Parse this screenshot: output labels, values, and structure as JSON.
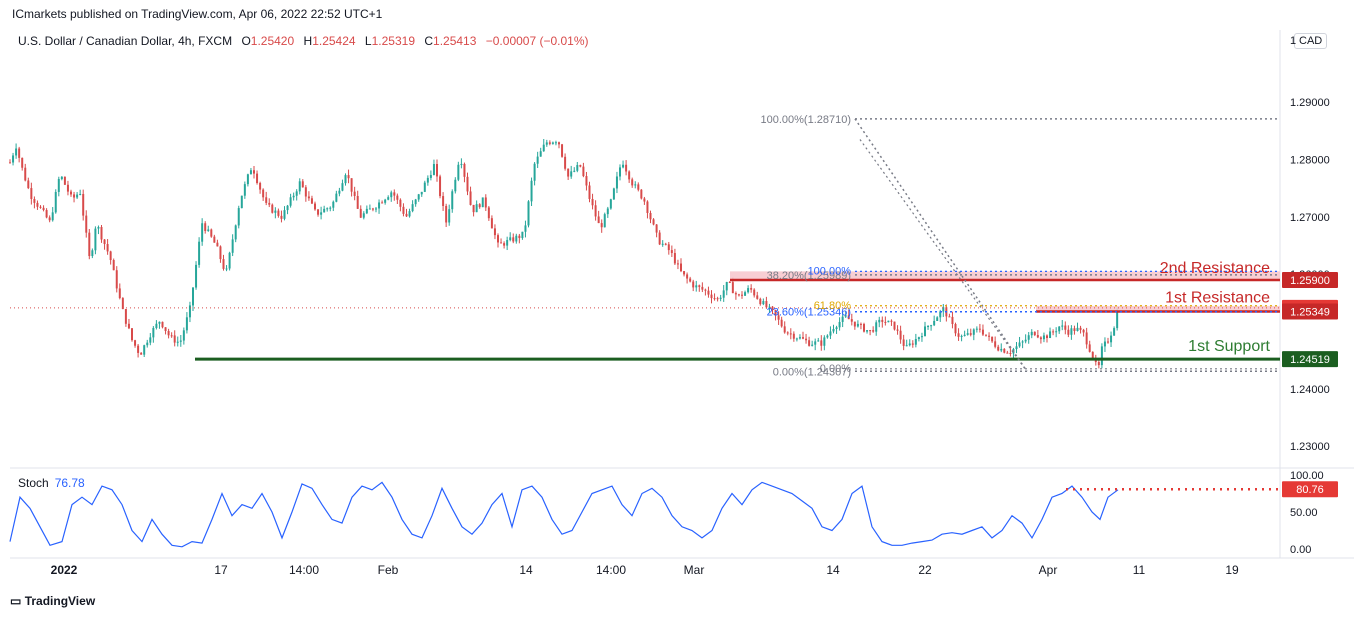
{
  "publisher": "ICmarkets published on TradingView.com, Apr 06, 2022 22:52 UTC+1",
  "legend": {
    "symbol": "U.S. Dollar / Canadian Dollar, 4h, FXCM",
    "open_label": "O",
    "open": "1.25420",
    "high_label": "H",
    "high": "1.25424",
    "low_label": "L",
    "low": "1.25319",
    "close_label": "C",
    "close": "1.25413",
    "change": "−0.00007 (−0.01%)"
  },
  "currency_button": "CAD",
  "stoch_legend": {
    "name": "Stoch",
    "value": "76.78"
  },
  "brand": "TradingView",
  "chart_data": {
    "type": "candlestick",
    "price_axis": {
      "ticks": [
        "1.29000",
        "1.28000",
        "1.27000",
        "1.26000",
        "1.24000",
        "1.23000"
      ],
      "tick_values": [
        1.29,
        1.28,
        1.27,
        1.26,
        1.24,
        1.23
      ],
      "top_tick": "1",
      "ylim": [
        1.2262,
        1.3026
      ]
    },
    "time_axis": {
      "ticks": [
        "2022",
        "17",
        "14:00",
        "Feb",
        "14",
        "14:00",
        "Mar",
        "14",
        "22",
        "Apr",
        "11",
        "19"
      ]
    },
    "price_anchors": [
      [
        0,
        1.2795
      ],
      [
        6,
        1.2825
      ],
      [
        12,
        1.2785
      ],
      [
        20,
        1.274
      ],
      [
        30,
        1.2715
      ],
      [
        40,
        1.269
      ],
      [
        50,
        1.2775
      ],
      [
        62,
        1.273
      ],
      [
        70,
        1.2745
      ],
      [
        80,
        1.262
      ],
      [
        86,
        1.269
      ],
      [
        100,
        1.263
      ],
      [
        112,
        1.254
      ],
      [
        122,
        1.2485
      ],
      [
        130,
        1.246
      ],
      [
        140,
        1.2495
      ],
      [
        150,
        1.252
      ],
      [
        160,
        1.249
      ],
      [
        170,
        1.248
      ],
      [
        180,
        1.254
      ],
      [
        192,
        1.269
      ],
      [
        206,
        1.265
      ],
      [
        216,
        1.26
      ],
      [
        230,
        1.273
      ],
      [
        242,
        1.279
      ],
      [
        256,
        1.272
      ],
      [
        272,
        1.27
      ],
      [
        290,
        1.276
      ],
      [
        306,
        1.2705
      ],
      [
        322,
        1.272
      ],
      [
        336,
        1.278
      ],
      [
        350,
        1.27
      ],
      [
        366,
        1.272
      ],
      [
        382,
        1.2745
      ],
      [
        396,
        1.27
      ],
      [
        410,
        1.274
      ],
      [
        424,
        1.279
      ],
      [
        436,
        1.269
      ],
      [
        450,
        1.281
      ],
      [
        462,
        1.271
      ],
      [
        474,
        1.273
      ],
      [
        488,
        1.265
      ],
      [
        502,
        1.266
      ],
      [
        514,
        1.267
      ],
      [
        524,
        1.279
      ],
      [
        536,
        1.283
      ],
      [
        548,
        1.2835
      ],
      [
        558,
        1.277
      ],
      [
        570,
        1.279
      ],
      [
        580,
        1.273
      ],
      [
        590,
        1.268
      ],
      [
        600,
        1.272
      ],
      [
        612,
        1.28
      ],
      [
        622,
        1.276
      ],
      [
        634,
        1.273
      ],
      [
        648,
        1.266
      ],
      [
        660,
        1.264
      ],
      [
        672,
        1.26
      ],
      [
        684,
        1.258
      ],
      [
        696,
        1.257
      ],
      [
        708,
        1.2555
      ],
      [
        718,
        1.2585
      ],
      [
        728,
        1.256
      ],
      [
        740,
        1.2575
      ],
      [
        752,
        1.255
      ],
      [
        764,
        1.253
      ],
      [
        776,
        1.25
      ],
      [
        788,
        1.249
      ],
      [
        800,
        1.248
      ],
      [
        812,
        1.248
      ],
      [
        824,
        1.251
      ],
      [
        836,
        1.2525
      ],
      [
        848,
        1.251
      ],
      [
        860,
        1.25
      ],
      [
        872,
        1.252
      ],
      [
        884,
        1.251
      ],
      [
        896,
        1.247
      ],
      [
        908,
        1.249
      ],
      [
        918,
        1.251
      ],
      [
        926,
        1.2525
      ],
      [
        934,
        1.254
      ],
      [
        942,
        1.251
      ],
      [
        950,
        1.249
      ],
      [
        960,
        1.2495
      ],
      [
        970,
        1.2505
      ],
      [
        980,
        1.2485
      ],
      [
        990,
        1.247
      ],
      [
        1000,
        1.2465
      ],
      [
        1012,
        1.248
      ],
      [
        1024,
        1.25
      ],
      [
        1032,
        1.249
      ],
      [
        1040,
        1.2495
      ],
      [
        1050,
        1.251
      ],
      [
        1058,
        1.25
      ],
      [
        1066,
        1.2505
      ],
      [
        1074,
        1.2495
      ],
      [
        1082,
        1.246
      ],
      [
        1088,
        1.243
      ],
      [
        1092,
        1.247
      ],
      [
        1098,
        1.2485
      ],
      [
        1104,
        1.251
      ],
      [
        1108,
        1.2538
      ]
    ],
    "levels": [
      {
        "name": "2nd Resistance",
        "label": "1.25900",
        "price": 1.259
      },
      {
        "name": "1st Resistance",
        "label": "1.25349",
        "price": 1.25349
      },
      {
        "name": "1st Support",
        "label": "1.24519",
        "price": 1.24519
      }
    ],
    "last_price": {
      "label": "1.25413",
      "price": 1.25413
    },
    "fibonacci_1": [
      {
        "label": "100.00%(1.28710)",
        "price": 1.2871
      },
      {
        "label": "38.20%(1.25989)",
        "price": 1.25989
      },
      {
        "label": "23.60%(1.25346)",
        "price": 1.25346
      },
      {
        "label": "0.00%(1.24307)",
        "price": 1.24307
      }
    ],
    "fibonacci_2": [
      {
        "label": "100.00%",
        "price": 1.2605
      },
      {
        "label": "61.80%",
        "price": 1.2545
      },
      {
        "label": "0.00%",
        "price": 1.2435
      }
    ],
    "stochastic": {
      "value": "76.78",
      "marker_label": "80.76",
      "marker_value": 80.76,
      "ticks": [
        "100.00",
        "50.00",
        "0.00"
      ],
      "tick_values": [
        100,
        50,
        0
      ],
      "anchors": [
        [
          0,
          10
        ],
        [
          10,
          70
        ],
        [
          20,
          55
        ],
        [
          30,
          30
        ],
        [
          40,
          5
        ],
        [
          52,
          10
        ],
        [
          62,
          60
        ],
        [
          72,
          70
        ],
        [
          82,
          60
        ],
        [
          92,
          85
        ],
        [
          102,
          80
        ],
        [
          112,
          60
        ],
        [
          122,
          25
        ],
        [
          132,
          10
        ],
        [
          142,
          40
        ],
        [
          152,
          20
        ],
        [
          162,
          5
        ],
        [
          172,
          3
        ],
        [
          182,
          10
        ],
        [
          192,
          8
        ],
        [
          202,
          40
        ],
        [
          212,
          75
        ],
        [
          222,
          45
        ],
        [
          232,
          60
        ],
        [
          242,
          55
        ],
        [
          252,
          75
        ],
        [
          262,
          50
        ],
        [
          272,
          15
        ],
        [
          282,
          50
        ],
        [
          292,
          88
        ],
        [
          302,
          82
        ],
        [
          312,
          60
        ],
        [
          322,
          40
        ],
        [
          332,
          35
        ],
        [
          342,
          70
        ],
        [
          352,
          85
        ],
        [
          362,
          80
        ],
        [
          372,
          90
        ],
        [
          382,
          70
        ],
        [
          392,
          40
        ],
        [
          402,
          20
        ],
        [
          412,
          15
        ],
        [
          422,
          45
        ],
        [
          432,
          82
        ],
        [
          442,
          55
        ],
        [
          452,
          30
        ],
        [
          462,
          20
        ],
        [
          472,
          35
        ],
        [
          482,
          60
        ],
        [
          492,
          75
        ],
        [
          502,
          30
        ],
        [
          512,
          80
        ],
        [
          522,
          85
        ],
        [
          532,
          70
        ],
        [
          542,
          40
        ],
        [
          552,
          20
        ],
        [
          562,
          25
        ],
        [
          572,
          50
        ],
        [
          582,
          75
        ],
        [
          592,
          80
        ],
        [
          602,
          85
        ],
        [
          612,
          60
        ],
        [
          622,
          45
        ],
        [
          632,
          75
        ],
        [
          642,
          82
        ],
        [
          652,
          70
        ],
        [
          662,
          45
        ],
        [
          672,
          30
        ],
        [
          682,
          25
        ],
        [
          692,
          15
        ],
        [
          702,
          25
        ],
        [
          712,
          55
        ],
        [
          722,
          75
        ],
        [
          732,
          60
        ],
        [
          742,
          80
        ],
        [
          752,
          90
        ],
        [
          762,
          85
        ],
        [
          772,
          80
        ],
        [
          782,
          75
        ],
        [
          792,
          65
        ],
        [
          802,
          55
        ],
        [
          812,
          30
        ],
        [
          822,
          25
        ],
        [
          832,
          40
        ],
        [
          842,
          75
        ],
        [
          852,
          85
        ],
        [
          862,
          30
        ],
        [
          872,
          10
        ],
        [
          882,
          5
        ],
        [
          892,
          5
        ],
        [
          902,
          8
        ],
        [
          912,
          10
        ],
        [
          922,
          12
        ],
        [
          932,
          20
        ],
        [
          942,
          22
        ],
        [
          952,
          20
        ],
        [
          962,
          25
        ],
        [
          972,
          30
        ],
        [
          982,
          15
        ],
        [
          992,
          25
        ],
        [
          1002,
          45
        ],
        [
          1012,
          35
        ],
        [
          1022,
          15
        ],
        [
          1032,
          40
        ],
        [
          1042,
          70
        ],
        [
          1052,
          75
        ],
        [
          1062,
          85
        ],
        [
          1072,
          70
        ],
        [
          1082,
          50
        ],
        [
          1090,
          40
        ],
        [
          1098,
          70
        ],
        [
          1108,
          80
        ]
      ]
    }
  }
}
